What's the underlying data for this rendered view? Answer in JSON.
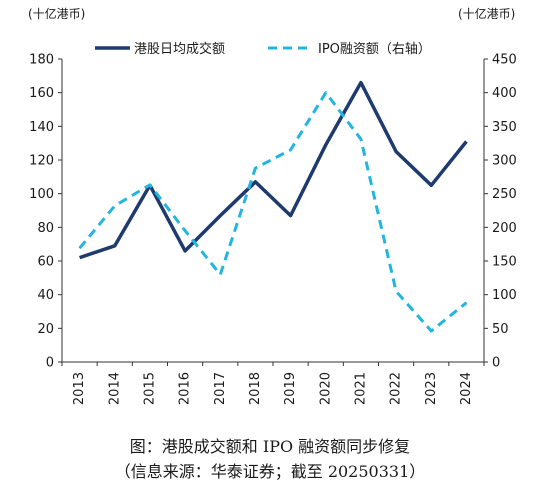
{
  "chart_data": {
    "type": "line",
    "categories": [
      "2013",
      "2014",
      "2015",
      "2016",
      "2017",
      "2018",
      "2019",
      "2020",
      "2021",
      "2022",
      "2023",
      "2024"
    ],
    "left_axis": {
      "unit_label": "(十亿港币)",
      "ylim": [
        0,
        180
      ],
      "ticks": [
        0,
        20,
        40,
        60,
        80,
        100,
        120,
        140,
        160,
        180
      ]
    },
    "right_axis": {
      "unit_label": "(十亿港币)",
      "ylim": [
        0,
        450
      ],
      "ticks": [
        0,
        50,
        100,
        150,
        200,
        250,
        300,
        350,
        400,
        450
      ]
    },
    "series": [
      {
        "name": "港股日均成交额",
        "axis": "left",
        "color": "#1f3a6e",
        "style": "solid",
        "values": [
          62,
          69,
          105,
          66,
          87,
          107,
          87,
          129,
          166,
          125,
          105,
          131
        ]
      },
      {
        "name": "IPO融资额（右轴）",
        "axis": "right",
        "color": "#22b5e0",
        "style": "dashed",
        "values": [
          169,
          232,
          263,
          195,
          130,
          288,
          315,
          400,
          331,
          105,
          46,
          88
        ]
      }
    ],
    "grid": false,
    "legend_position": "top"
  },
  "caption": {
    "line1": "图：港股成交额和 IPO 融资额同步修复",
    "line2": "（信息来源：华泰证券；截至 20250331）"
  }
}
